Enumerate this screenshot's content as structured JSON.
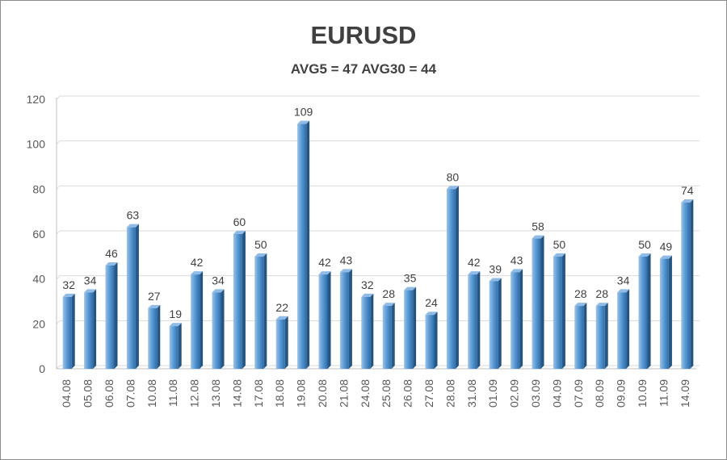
{
  "chart_data": {
    "type": "bar",
    "title": "EURUSD",
    "subtitle": "AVG5 = 47 AVG30 = 44",
    "categories": [
      "04.08",
      "05.08",
      "06.08",
      "07.08",
      "10.08",
      "11.08",
      "12.08",
      "13.08",
      "14.08",
      "17.08",
      "18.08",
      "19.08",
      "20.08",
      "21.08",
      "24.08",
      "25.08",
      "26.08",
      "27.08",
      "28.08",
      "31.08",
      "01.09",
      "02.09",
      "03.09",
      "04.09",
      "07.09",
      "08.09",
      "09.09",
      "10.09",
      "11.09",
      "14.09"
    ],
    "values": [
      32,
      34,
      46,
      63,
      27,
      19,
      42,
      34,
      60,
      50,
      22,
      109,
      42,
      43,
      32,
      28,
      35,
      24,
      80,
      42,
      39,
      43,
      58,
      50,
      28,
      28,
      34,
      50,
      49,
      74
    ],
    "ylim": [
      0,
      120
    ],
    "yticks": [
      0,
      20,
      40,
      60,
      80,
      100,
      120
    ],
    "xlabel": "",
    "ylabel": "",
    "grid": true,
    "legend": "none",
    "bar_color": "#5b9bd5"
  }
}
